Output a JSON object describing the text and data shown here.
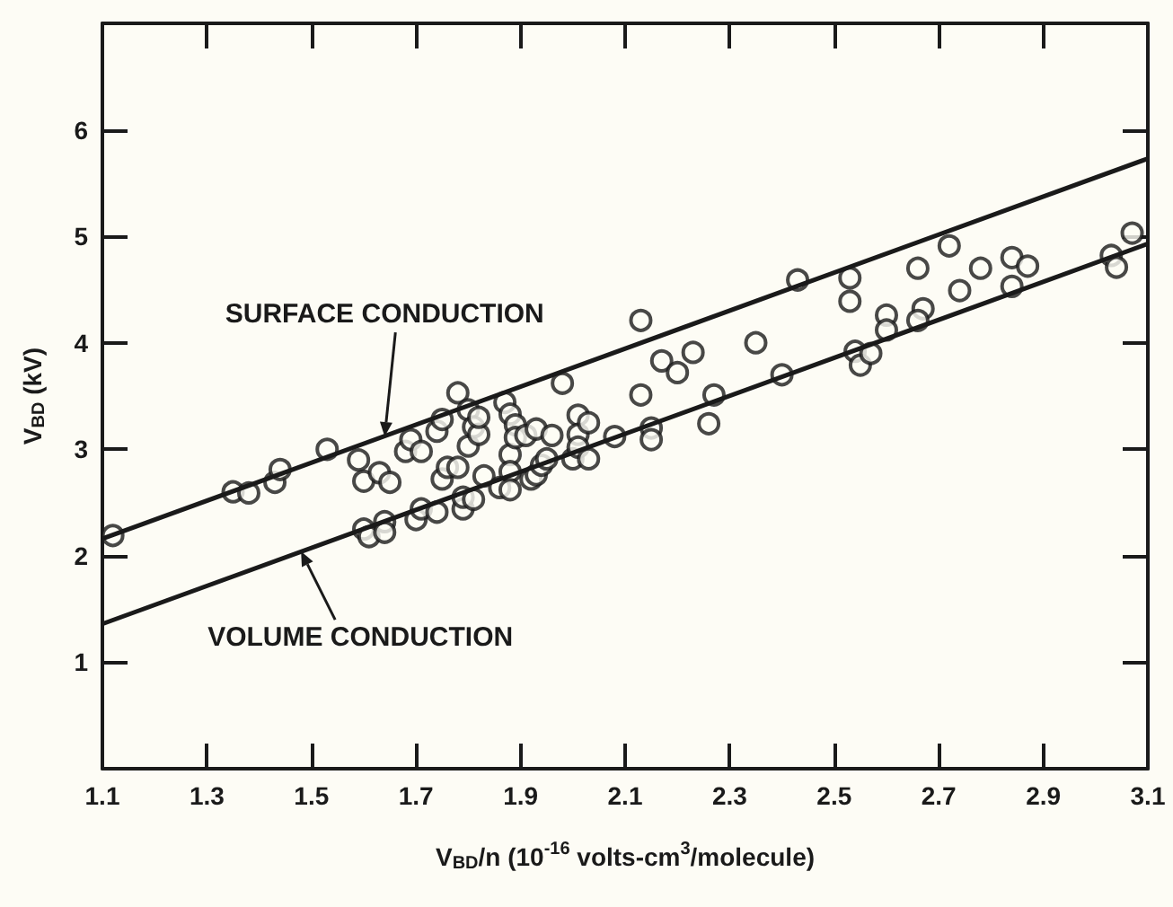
{
  "chart_data": {
    "type": "scatter",
    "xlabel": "V$_{BD}$/n (10$^{-16}$ volts-cm$^{3}$/molecule)",
    "ylabel": "V$_{BD}$ (kV)",
    "xlim": [
      1.1,
      3.1
    ],
    "xticks": [
      1.1,
      1.3,
      1.5,
      1.7,
      1.9,
      2.1,
      2.3,
      2.5,
      2.7,
      2.9,
      3.1
    ],
    "ylim": [
      0,
      7
    ],
    "yticks": [
      1,
      2,
      3,
      4,
      5,
      6
    ],
    "grid": false,
    "series": [
      {
        "marker": "circle",
        "color": "#1a1a1a",
        "x": [
          1.12,
          1.35,
          1.38,
          1.43,
          1.44,
          1.53,
          1.59,
          1.6,
          1.63,
          1.65,
          1.6,
          1.61,
          1.64,
          1.64,
          1.68,
          1.69,
          1.71,
          1.7,
          1.71,
          1.74,
          1.74,
          1.75,
          1.75,
          1.76,
          1.78,
          1.78,
          1.79,
          1.79,
          1.8,
          1.8,
          1.81,
          1.82,
          1.82,
          1.81,
          1.83,
          1.86,
          1.87,
          1.88,
          1.88,
          1.88,
          1.88,
          1.89,
          1.89,
          1.91,
          1.92,
          1.93,
          1.93,
          1.94,
          1.95,
          1.96,
          1.98,
          2.0,
          2.01,
          2.01,
          2.01,
          2.03,
          2.03,
          2.08,
          2.13,
          2.13,
          2.15,
          2.15,
          2.17,
          2.2,
          2.23,
          2.26,
          2.27,
          2.35,
          2.4,
          2.43,
          2.53,
          2.53,
          2.54,
          2.55,
          2.57,
          2.6,
          2.6,
          2.66,
          2.67,
          2.66,
          2.72,
          2.74,
          2.78,
          2.84,
          2.84,
          2.87,
          3.03,
          3.04,
          3.07
        ],
        "values": [
          2.19,
          2.6,
          2.59,
          2.69,
          2.81,
          3.0,
          2.9,
          2.7,
          2.78,
          2.69,
          2.25,
          2.18,
          2.32,
          2.22,
          2.98,
          3.09,
          2.98,
          2.34,
          2.44,
          2.41,
          3.17,
          3.28,
          2.72,
          2.83,
          2.83,
          3.53,
          2.44,
          2.55,
          3.37,
          3.03,
          3.21,
          3.14,
          3.3,
          2.53,
          2.75,
          2.64,
          3.44,
          3.33,
          2.95,
          2.79,
          2.62,
          3.23,
          3.11,
          3.13,
          2.72,
          3.19,
          2.76,
          2.85,
          2.91,
          3.13,
          3.62,
          2.91,
          3.32,
          3.14,
          3.02,
          3.25,
          2.91,
          3.12,
          4.21,
          3.51,
          3.2,
          3.09,
          3.83,
          3.72,
          3.91,
          3.24,
          3.51,
          4.0,
          3.7,
          4.59,
          4.61,
          4.39,
          3.92,
          3.79,
          3.9,
          4.26,
          4.12,
          4.7,
          4.32,
          4.21,
          4.91,
          4.49,
          4.7,
          4.8,
          4.53,
          4.72,
          4.82,
          4.71,
          5.03
        ]
      },
      {
        "type": "line",
        "marker": "none",
        "color": "#1a1a1a",
        "x": [
          1.1,
          3.1
        ],
        "values": [
          2.16,
          5.73
        ]
      },
      {
        "type": "line",
        "marker": "none",
        "color": "#1a1a1a",
        "x": [
          1.1,
          3.1
        ],
        "values": [
          1.36,
          4.93
        ]
      }
    ],
    "annotations": [
      {
        "text": "SURFACE CONDUCTION",
        "x": 1.64,
        "y": 3.12
      },
      {
        "text": "VOLUME CONDUCTION",
        "x": 1.48,
        "y": 2.04
      }
    ]
  }
}
